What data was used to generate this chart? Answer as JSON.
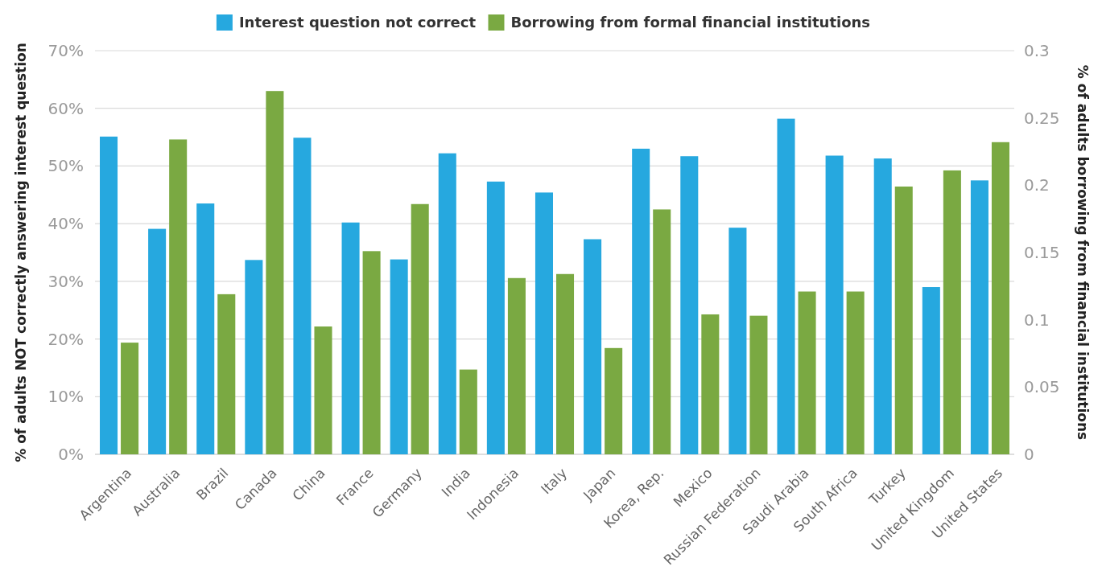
{
  "chart_data": {
    "type": "bar",
    "xlabel": null,
    "ylabel": "% of adults NOT correctly answering interest question",
    "y2label": "% of adults borrowing from financial institutions",
    "categories": [
      "Argentina",
      "Australia",
      "Brazil",
      "Canada",
      "China",
      "France",
      "Germany",
      "India",
      "Indonesia",
      "Italy",
      "Japan",
      "Korea, Rep.",
      "Mexico",
      "Russian Federation",
      "Saudi Arabia",
      "South Africa",
      "Turkey",
      "United Kingdom",
      "United States"
    ],
    "series": [
      {
        "name": "Interest question not correct",
        "color": "#26a8df",
        "values": [
          55.1,
          39.1,
          43.5,
          33.7,
          54.9,
          40.2,
          33.8,
          52.2,
          47.3,
          45.4,
          37.3,
          53.0,
          51.7,
          39.3,
          58.2,
          51.8,
          51.3,
          29.0,
          47.5
        ]
      },
      {
        "name": "Borrowing from formal financial institutions",
        "color": "#7aa942",
        "axis": "y2",
        "values": [
          0.083,
          0.234,
          0.119,
          0.27,
          0.095,
          0.151,
          0.186,
          0.063,
          0.131,
          0.134,
          0.079,
          0.182,
          0.104,
          0.103,
          0.121,
          0.121,
          0.199,
          0.211,
          0.232
        ]
      }
    ],
    "ylim": [
      0,
      70
    ],
    "yticks": [
      {
        "value": 0,
        "label": "0%"
      },
      {
        "value": 10,
        "label": "10%"
      },
      {
        "value": 20,
        "label": "20%"
      },
      {
        "value": 30,
        "label": "30%"
      },
      {
        "value": 40,
        "label": "40%"
      },
      {
        "value": 50,
        "label": "50%"
      },
      {
        "value": 60,
        "label": "60%"
      },
      {
        "value": 70,
        "label": "70%"
      }
    ],
    "y2lim": [
      0,
      0.3
    ],
    "y2ticks": [
      0,
      0.05,
      0.1,
      0.15,
      0.2,
      0.25,
      0.3
    ],
    "grid": "y",
    "legend": "top"
  }
}
